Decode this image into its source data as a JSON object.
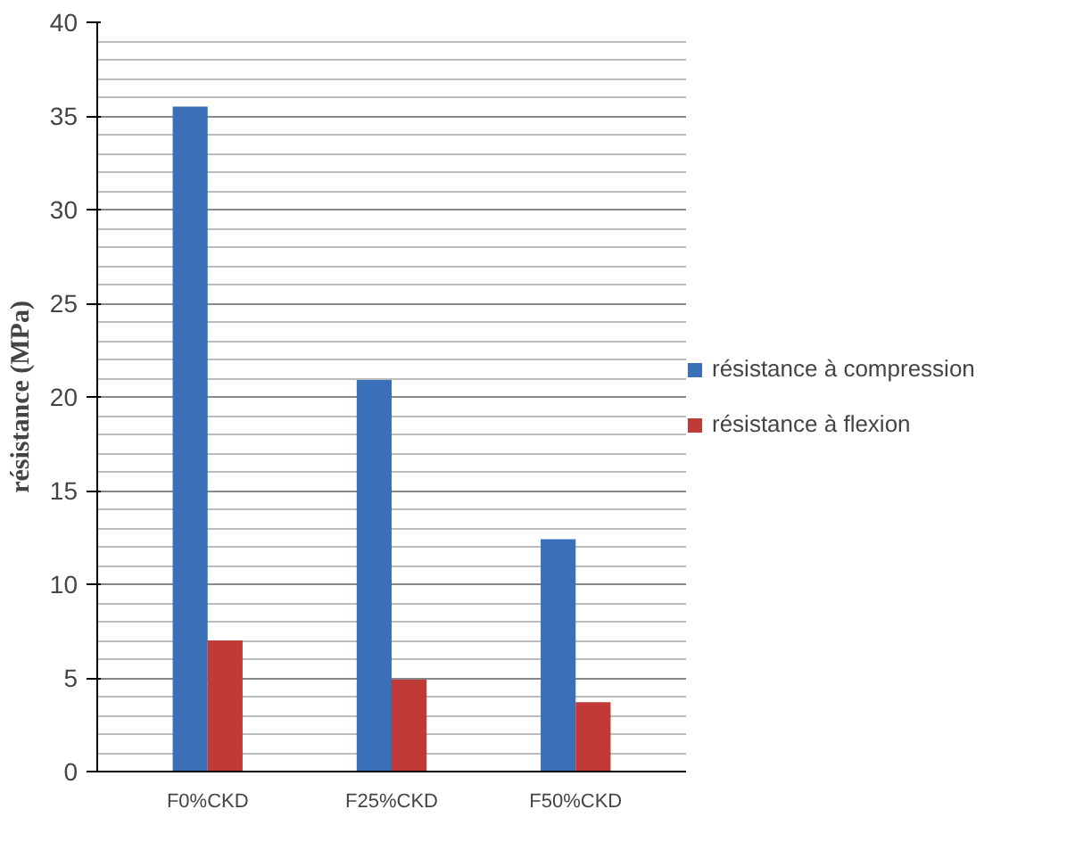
{
  "chart_data": {
    "type": "bar",
    "ylabel": "résistance (MPa)",
    "categories": [
      "F0%CKD",
      "F25%CKD",
      "F50%CKD"
    ],
    "series": [
      {
        "name": "résistance à compression",
        "color": "#3a70b8",
        "values": [
          35.5,
          20.9,
          12.4
        ]
      },
      {
        "name": "résistance à flexion",
        "color": "#c03a38",
        "values": [
          7.0,
          4.9,
          3.7
        ]
      }
    ],
    "ylim": [
      0,
      40
    ],
    "yticks": [
      0,
      5,
      10,
      15,
      20,
      25,
      30,
      35,
      40
    ],
    "grid": "y",
    "legend": "right"
  }
}
